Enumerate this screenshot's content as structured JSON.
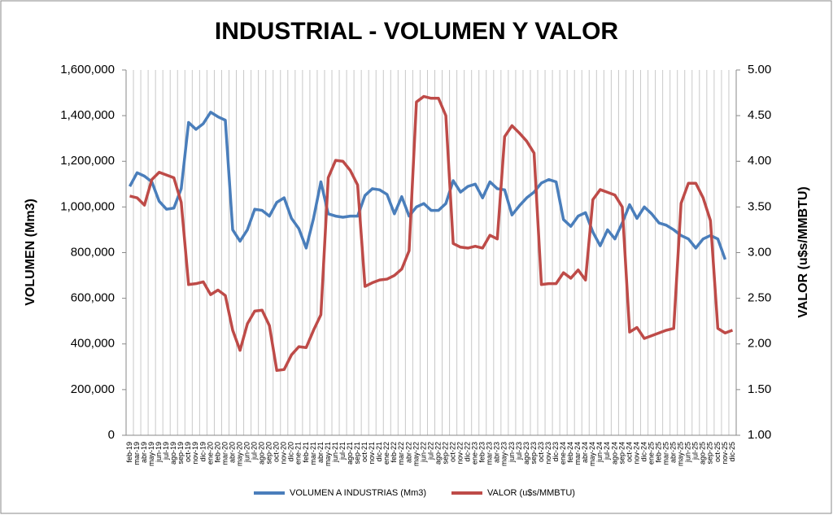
{
  "chart_data": {
    "type": "line",
    "title": "INDUSTRIAL - VOLUMEN Y VALOR",
    "y_label": "VOLUMEN (Mm3)",
    "y2_label": "VALOR (u$s/MMBTU)",
    "categories": [
      "feb-19",
      "mar-19",
      "abr-19",
      "may-19",
      "jun-19",
      "jul-19",
      "ago-19",
      "sep-19",
      "oct-19",
      "nov-19",
      "dic-19",
      "ene-20",
      "feb-20",
      "mar-20",
      "abr-20",
      "may-20",
      "jun-20",
      "jul-20",
      "ago-20",
      "sep-20",
      "oct-20",
      "nov-20",
      "dic-20",
      "ene-21",
      "feb-21",
      "mar-21",
      "abr-21",
      "may-21",
      "jun-21",
      "jul-21",
      "ago-21",
      "sep-21",
      "oct-21",
      "nov-21",
      "dic-21",
      "ene-22",
      "feb-22",
      "mar-22",
      "abr-22",
      "may-22",
      "jun-22",
      "jul-22",
      "ago-22",
      "sep-22",
      "oct-22",
      "nov-22",
      "dic-22",
      "ene-23",
      "feb-23",
      "mar-23",
      "abr-23",
      "may-23",
      "jun-23",
      "jul-23",
      "ago-23",
      "sep-23",
      "oct-23",
      "nov-23",
      "dic-23",
      "ene-24",
      "feb-24",
      "mar-24",
      "abr-24",
      "may-24",
      "jun-24",
      "jul-24",
      "ago-24",
      "sep-24",
      "oct-24",
      "nov-24",
      "dic-24",
      "ene-25",
      "feb-25",
      "mar-25",
      "abr-25",
      "may-25",
      "jun-25",
      "jul-25",
      "ago-25",
      "sep-25",
      "oct-25",
      "nov-25",
      "dic-25"
    ],
    "series": [
      {
        "name": "VOLUMEN A INDUSTRIAS (Mm3)",
        "color": "#4a7ebb",
        "values": [
          1090000,
          1150000,
          1135000,
          1110000,
          1025000,
          990000,
          995000,
          1080000,
          1370000,
          1340000,
          1365000,
          1415000,
          1395000,
          1380000,
          900000,
          850000,
          900000,
          990000,
          985000,
          960000,
          1020000,
          1040000,
          950000,
          905000,
          820000,
          950000,
          1110000,
          970000,
          960000,
          955000,
          960000,
          960000,
          1050000,
          1080000,
          1075000,
          1055000,
          970000,
          1045000,
          960000,
          1000000,
          1015000,
          985000,
          985000,
          1015000,
          1115000,
          1065000,
          1090000,
          1100000,
          1040000,
          1110000,
          1080000,
          1075000,
          965000,
          1005000,
          1040000,
          1065000,
          1105000,
          1120000,
          1110000,
          945000,
          915000,
          960000,
          975000,
          890000,
          830000,
          900000,
          860000,
          930000,
          1010000,
          950000,
          1000000,
          970000,
          930000,
          920000,
          900000,
          875000,
          860000,
          820000,
          860000,
          875000,
          860000,
          770000,
          null
        ]
      },
      {
        "name": "VALOR (u$s/MMBTU)",
        "color": "#be4b48",
        "axis": "y2",
        "values": [
          3.62,
          3.6,
          3.52,
          3.8,
          3.88,
          3.85,
          3.82,
          3.55,
          2.65,
          2.66,
          2.68,
          2.54,
          2.59,
          2.53,
          2.15,
          1.93,
          2.22,
          2.36,
          2.37,
          2.2,
          1.71,
          1.72,
          1.88,
          1.97,
          1.96,
          2.15,
          2.32,
          3.82,
          4.01,
          4.0,
          3.9,
          3.74,
          2.63,
          2.67,
          2.7,
          2.71,
          2.75,
          2.82,
          3.02,
          4.65,
          4.71,
          4.69,
          4.69,
          4.5,
          3.1,
          3.06,
          3.05,
          3.07,
          3.05,
          3.19,
          3.15,
          4.27,
          4.39,
          4.31,
          4.22,
          4.09,
          2.65,
          2.66,
          2.66,
          2.78,
          2.72,
          2.81,
          2.7,
          3.58,
          3.69,
          3.66,
          3.63,
          3.5,
          2.13,
          2.18,
          2.06,
          2.09,
          2.12,
          2.15,
          2.17,
          3.54,
          3.76,
          3.76,
          3.6,
          3.35,
          2.17,
          2.12,
          2.15
        ]
      }
    ],
    "ylim": [
      0,
      1600000
    ],
    "yticks": [
      0,
      {
        "value": 200000,
        "label": "200,000"
      },
      {
        "value": 400000,
        "label": "400,000"
      },
      {
        "value": 600000,
        "label": "600,000"
      },
      {
        "value": 800000,
        "label": "800,000"
      },
      {
        "value": 1000000,
        "label": "1,000,000"
      },
      {
        "value": 1200000,
        "label": "1,200,000"
      },
      {
        "value": 1400000,
        "label": "1,400,000"
      },
      {
        "value": 1600000,
        "label": "1,600,000"
      }
    ],
    "y2lim": [
      1,
      5
    ],
    "y2ticks": [
      {
        "value": 1,
        "label": "1.00"
      },
      {
        "value": 1.5,
        "label": "1.50"
      },
      {
        "value": 2,
        "label": "2.00"
      },
      {
        "value": 2.5,
        "label": "2.50"
      },
      {
        "value": 3,
        "label": "3.00"
      },
      {
        "value": 3.5,
        "label": "3.50"
      },
      {
        "value": 4,
        "label": "4.00"
      },
      {
        "value": 4.5,
        "label": "4.50"
      },
      {
        "value": 5,
        "label": "5.00"
      }
    ],
    "grid": "x",
    "legend": "bottom"
  }
}
